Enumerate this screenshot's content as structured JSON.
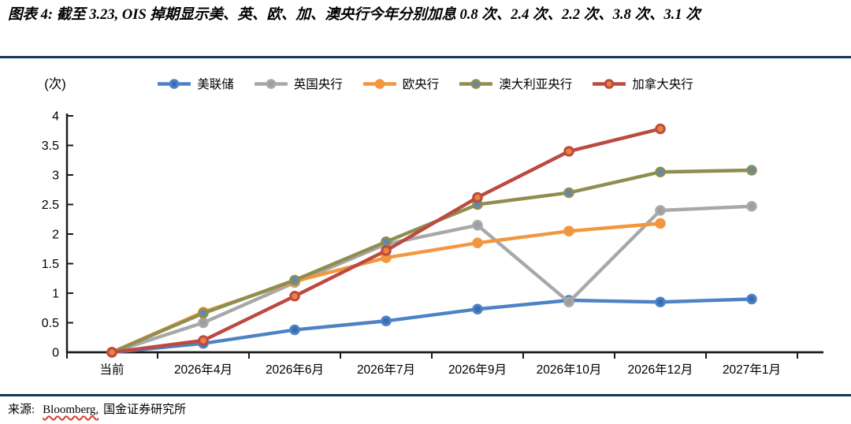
{
  "header": {
    "title": "图表 4: 截至 3.23, OIS 掉期显示美、英、欧、加、澳央行今年分别加息 0.8 次、2.4 次、2.2 次、3.8 次、3.1 次"
  },
  "colors": {
    "divider": "#16365c",
    "axis": "#1a1a1a"
  },
  "chart_data": {
    "type": "line",
    "unit_label": "(次)",
    "categories": [
      "当前",
      "2026年4月",
      "2026年6月",
      "2026年7月",
      "2026年9月",
      "2026年10月",
      "2026年12月",
      "2027年1月"
    ],
    "series": [
      {
        "id": "fed",
        "name": "美联储",
        "color": "#4d82c4",
        "marker_fill": "#3a6cb5",
        "values": [
          0,
          0.15,
          0.38,
          0.53,
          0.73,
          0.88,
          0.85,
          0.9
        ]
      },
      {
        "id": "boe",
        "name": "英国央行",
        "color": "#a8a8a8",
        "marker_fill": "#9e9e9e",
        "values": [
          0,
          0.5,
          1.18,
          1.83,
          2.15,
          0.85,
          2.4,
          2.47
        ]
      },
      {
        "id": "ecb",
        "name": "欧央行",
        "color": "#f2973f",
        "marker_fill": "#f2973f",
        "values": [
          0,
          0.68,
          1.2,
          1.6,
          1.85,
          2.05,
          2.18,
          null
        ]
      },
      {
        "id": "rba",
        "name": "澳大利亚央行",
        "color": "#8f8e4f",
        "marker_fill": "#5e88b8",
        "values": [
          0,
          0.66,
          1.22,
          1.87,
          2.5,
          2.7,
          3.05,
          3.08
        ]
      },
      {
        "id": "boc",
        "name": "加拿大央行",
        "color": "#bc4a41",
        "marker_fill": "#e6853c",
        "values": [
          0,
          0.2,
          0.95,
          1.72,
          2.62,
          3.4,
          3.78,
          null
        ]
      }
    ],
    "ylim": [
      0,
      4
    ],
    "ytick_step": 0.5,
    "ytick_labels": [
      "0",
      "0.5",
      "1",
      "1.5",
      "2",
      "2.5",
      "3",
      "3.5",
      "4"
    ],
    "legend_position": "top",
    "grid": false
  },
  "footer": {
    "source_label": "来源:",
    "bloomberg": "Bloomberg,",
    "institute": "国金证券研究所"
  }
}
